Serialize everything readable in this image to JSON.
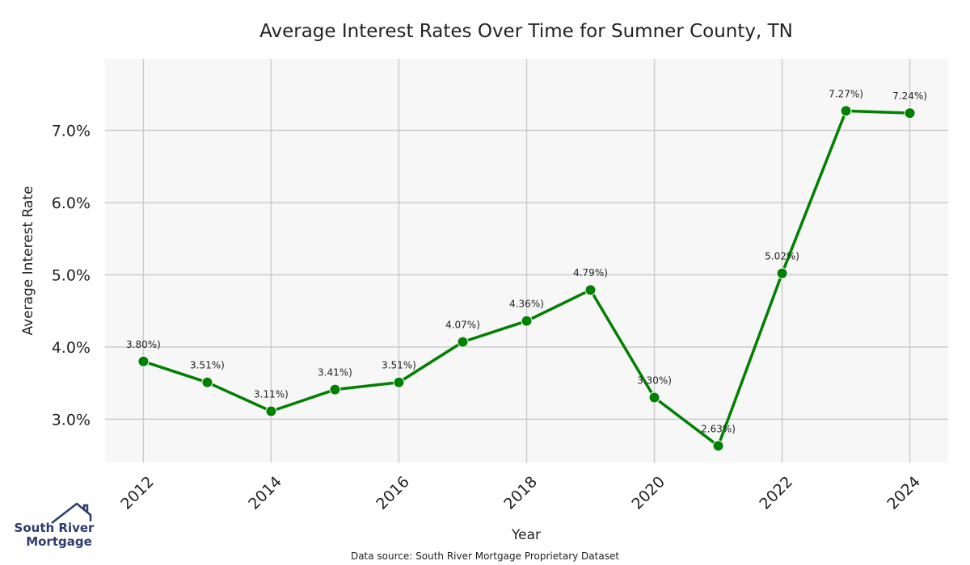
{
  "chart_data": {
    "type": "line",
    "title": "Average Interest Rates Over Time for Sumner County, TN",
    "xlabel": "Year",
    "ylabel": "Average Interest Rate",
    "x": [
      2012,
      2013,
      2014,
      2015,
      2016,
      2017,
      2018,
      2019,
      2020,
      2021,
      2022,
      2023,
      2024
    ],
    "series": [
      {
        "values": [
          3.8,
          3.51,
          3.11,
          3.41,
          3.51,
          4.07,
          4.36,
          4.79,
          3.3,
          2.63,
          5.02,
          7.27,
          7.24
        ],
        "data_labels": [
          "3.80%)",
          "3.51%)",
          "3.11%)",
          "3.41%)",
          "3.51%)",
          "4.07%)",
          "4.36%)",
          "4.79%)",
          "3.30%)",
          "2.63%)",
          "5.02%)",
          "7.27%)",
          "7.24%)"
        ],
        "color": "#008000"
      }
    ],
    "xlim": [
      2011.4,
      2024.6
    ],
    "ylim": [
      2.4,
      7.99
    ],
    "x_ticks": [
      2012,
      2014,
      2016,
      2018,
      2020,
      2022,
      2024
    ],
    "x_tick_labels": [
      "2012",
      "2014",
      "2016",
      "2018",
      "2020",
      "2022",
      "2024"
    ],
    "y_ticks": [
      3.0,
      4.0,
      5.0,
      6.0,
      7.0
    ],
    "y_tick_labels": [
      "3.0%",
      "4.0%",
      "5.0%",
      "6.0%",
      "7.0%"
    ],
    "grid": true,
    "plot_background": "#f7f7f7",
    "grid_color": "#cccccc"
  },
  "footer": {
    "source": "Data source: South River Mortgage Proprietary Dataset"
  },
  "logo": {
    "line1": "South River",
    "line2": "Mortgage",
    "icon": "house-roof-icon",
    "color": "#2a3d6e"
  }
}
